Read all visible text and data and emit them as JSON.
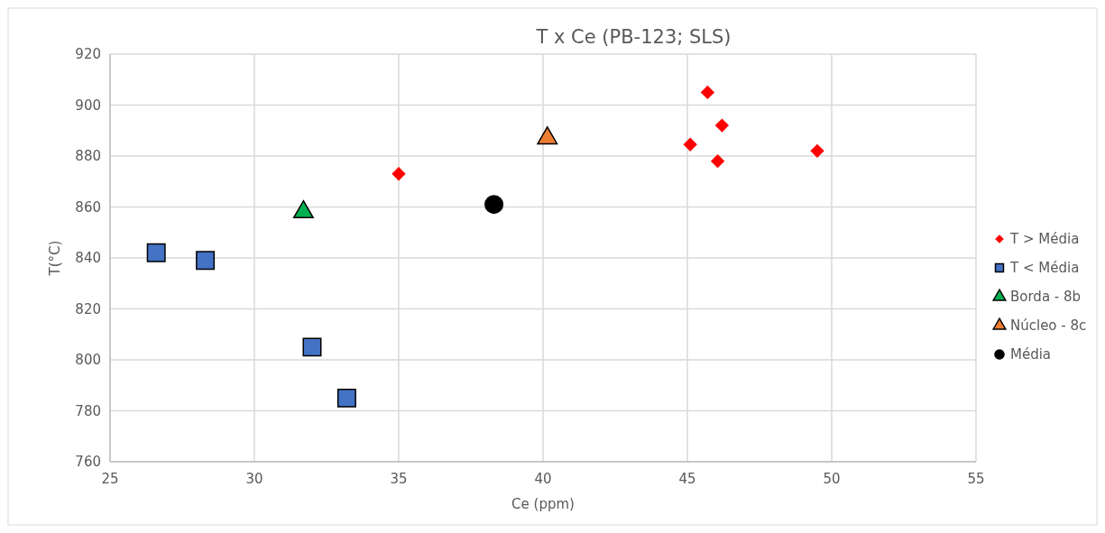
{
  "chart_data": {
    "type": "scatter",
    "title": "T x Ce (PB-123; SLS)",
    "xlabel": "Ce (ppm)",
    "ylabel": "T(°C)",
    "xlim": [
      25,
      55
    ],
    "xticks": [
      25,
      30,
      35,
      40,
      45,
      50,
      55
    ],
    "ylim": [
      760,
      920
    ],
    "yticks": [
      760,
      780,
      800,
      820,
      840,
      860,
      880,
      900,
      920
    ],
    "grid": true,
    "legend": "right",
    "series": [
      {
        "name": "T > Média",
        "color": "#ff0000",
        "marker": "diamond",
        "x": [
          45.7,
          46.2,
          45.1,
          46.05,
          49.5,
          35.0
        ],
        "values": [
          905,
          892,
          884.5,
          878,
          882,
          873
        ]
      },
      {
        "name": "T < Média",
        "color": "#4472c4",
        "marker": "square",
        "x": [
          26.6,
          28.3,
          32.0,
          33.2
        ],
        "values": [
          842,
          839,
          805,
          785
        ]
      },
      {
        "name": "Borda - 8b",
        "color": "#00b050",
        "marker": "triangle",
        "x": [
          31.7
        ],
        "values": [
          858
        ]
      },
      {
        "name": "Núcleo - 8c",
        "color": "#ed7d31",
        "marker": "triangle",
        "x": [
          40.15
        ],
        "values": [
          887
        ]
      },
      {
        "name": "Média",
        "color": "#000000",
        "marker": "circle",
        "x": [
          38.3
        ],
        "values": [
          861
        ]
      }
    ]
  }
}
